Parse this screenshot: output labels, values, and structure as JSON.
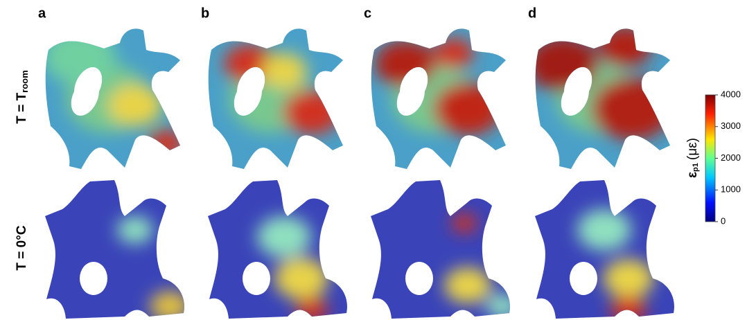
{
  "panels": [
    "a",
    "b",
    "c",
    "d"
  ],
  "rows": [
    {
      "main": "T = T",
      "sub": "room"
    },
    {
      "main": "T = 0°C"
    }
  ],
  "colorbar": {
    "symbol": "ε",
    "sub": "p1",
    "unit": "(με)",
    "lim": [
      0,
      4000
    ],
    "ticks": [
      0,
      1000,
      2000,
      3000,
      4000
    ]
  }
}
